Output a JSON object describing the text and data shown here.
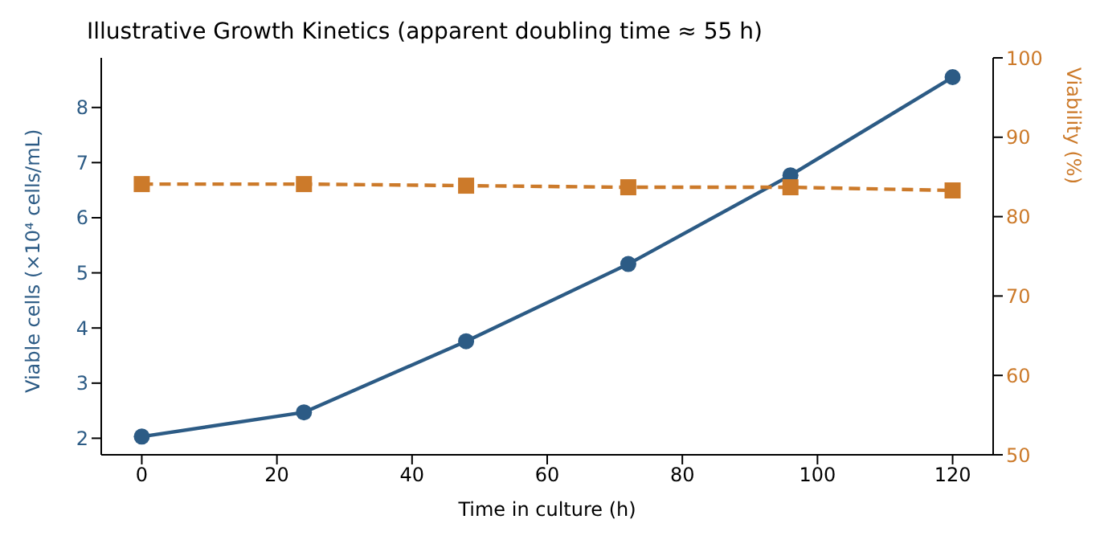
{
  "chart_data": {
    "type": "line",
    "title": "Illustrative Growth Kinetics (apparent doubling time ≈ 55 h)",
    "xlabel": "Time in culture (h)",
    "ylabel": "Viable cells (×10⁴ cells/mL)",
    "y2label": "Viability (%)",
    "x": [
      0,
      24,
      48,
      72,
      96,
      120
    ],
    "series": [
      {
        "color": "#2c5b85",
        "values": [
          2.03,
          2.47,
          3.76,
          5.16,
          6.77,
          8.55
        ],
        "marker": "circle",
        "line_style": "solid"
      },
      {
        "color": "#cc7a2a",
        "values": [
          84.1,
          84.1,
          83.9,
          83.7,
          83.7,
          83.3
        ],
        "axis": "y2",
        "marker": "square",
        "line_style": "dashed"
      }
    ],
    "xlim": [
      -6,
      126
    ],
    "xticks": [
      0,
      20,
      40,
      60,
      80,
      100,
      120
    ],
    "ylim": [
      1.7,
      8.9
    ],
    "yticks": [
      2,
      3,
      4,
      5,
      6,
      7,
      8
    ],
    "y2lim": [
      50,
      100
    ],
    "y2ticks": [
      50,
      60,
      70,
      80,
      90,
      100
    ]
  }
}
